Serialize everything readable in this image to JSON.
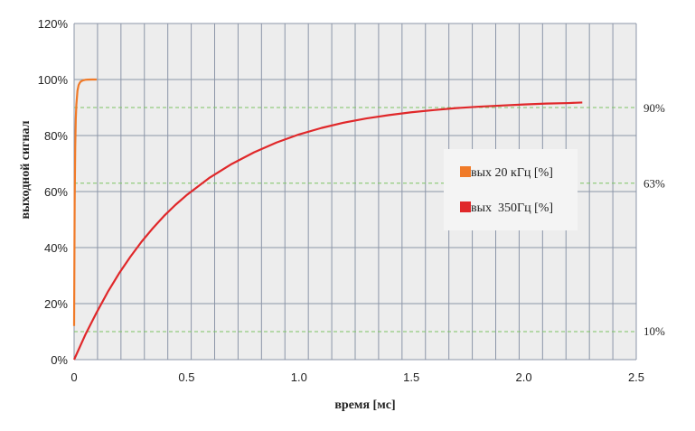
{
  "chart_data": {
    "type": "line",
    "xlabel": "время [мс]",
    "ylabel": "выходной сигнал",
    "xlim": [
      0,
      2.5
    ],
    "ylim": [
      0,
      120
    ],
    "x_ticks": [
      "0",
      "0.5",
      "1.0",
      "1.5",
      "2.0",
      "2.5"
    ],
    "y_ticks": [
      "0%",
      "20%",
      "40%",
      "60%",
      "80%",
      "100%",
      "120%"
    ],
    "grid": true,
    "reference_lines": [
      {
        "y": 90,
        "label": "90%"
      },
      {
        "y": 63,
        "label": "63%"
      },
      {
        "y": 10,
        "label": "10%"
      }
    ],
    "legend_position": "right",
    "series": [
      {
        "name": "вых 20 кГц [%]",
        "color": "#F07A28",
        "x": [
          0.0,
          0.0025,
          0.005,
          0.0075,
          0.01,
          0.015,
          0.02,
          0.025,
          0.03,
          0.04,
          0.05,
          0.06,
          0.08,
          0.1
        ],
        "values": [
          12,
          56,
          76,
          86,
          91,
          96,
          98,
          98.8,
          99.3,
          99.7,
          99.9,
          99.95,
          100,
          100
        ]
      },
      {
        "name": "вых  350Гц [%]",
        "color": "#E0282A",
        "x": [
          0.0,
          0.05,
          0.1,
          0.15,
          0.2,
          0.25,
          0.3,
          0.35,
          0.4,
          0.45,
          0.5,
          0.6,
          0.7,
          0.8,
          0.9,
          1.0,
          1.1,
          1.2,
          1.3,
          1.4,
          1.5,
          1.6,
          1.7,
          1.8,
          1.9,
          2.0,
          2.1,
          2.2,
          2.26
        ],
        "values": [
          0.0,
          8.9,
          16.8,
          24.2,
          30.8,
          36.7,
          42.1,
          46.9,
          51.3,
          55.2,
          58.7,
          64.8,
          69.8,
          74.0,
          77.5,
          80.4,
          82.7,
          84.6,
          86.1,
          87.3,
          88.3,
          89.1,
          89.8,
          90.3,
          90.7,
          91.1,
          91.4,
          91.6,
          91.8
        ]
      }
    ]
  },
  "colors": {
    "plot_background": "#EDEDED",
    "grid": "#8C96A8",
    "reference_line": "#7DC462"
  }
}
